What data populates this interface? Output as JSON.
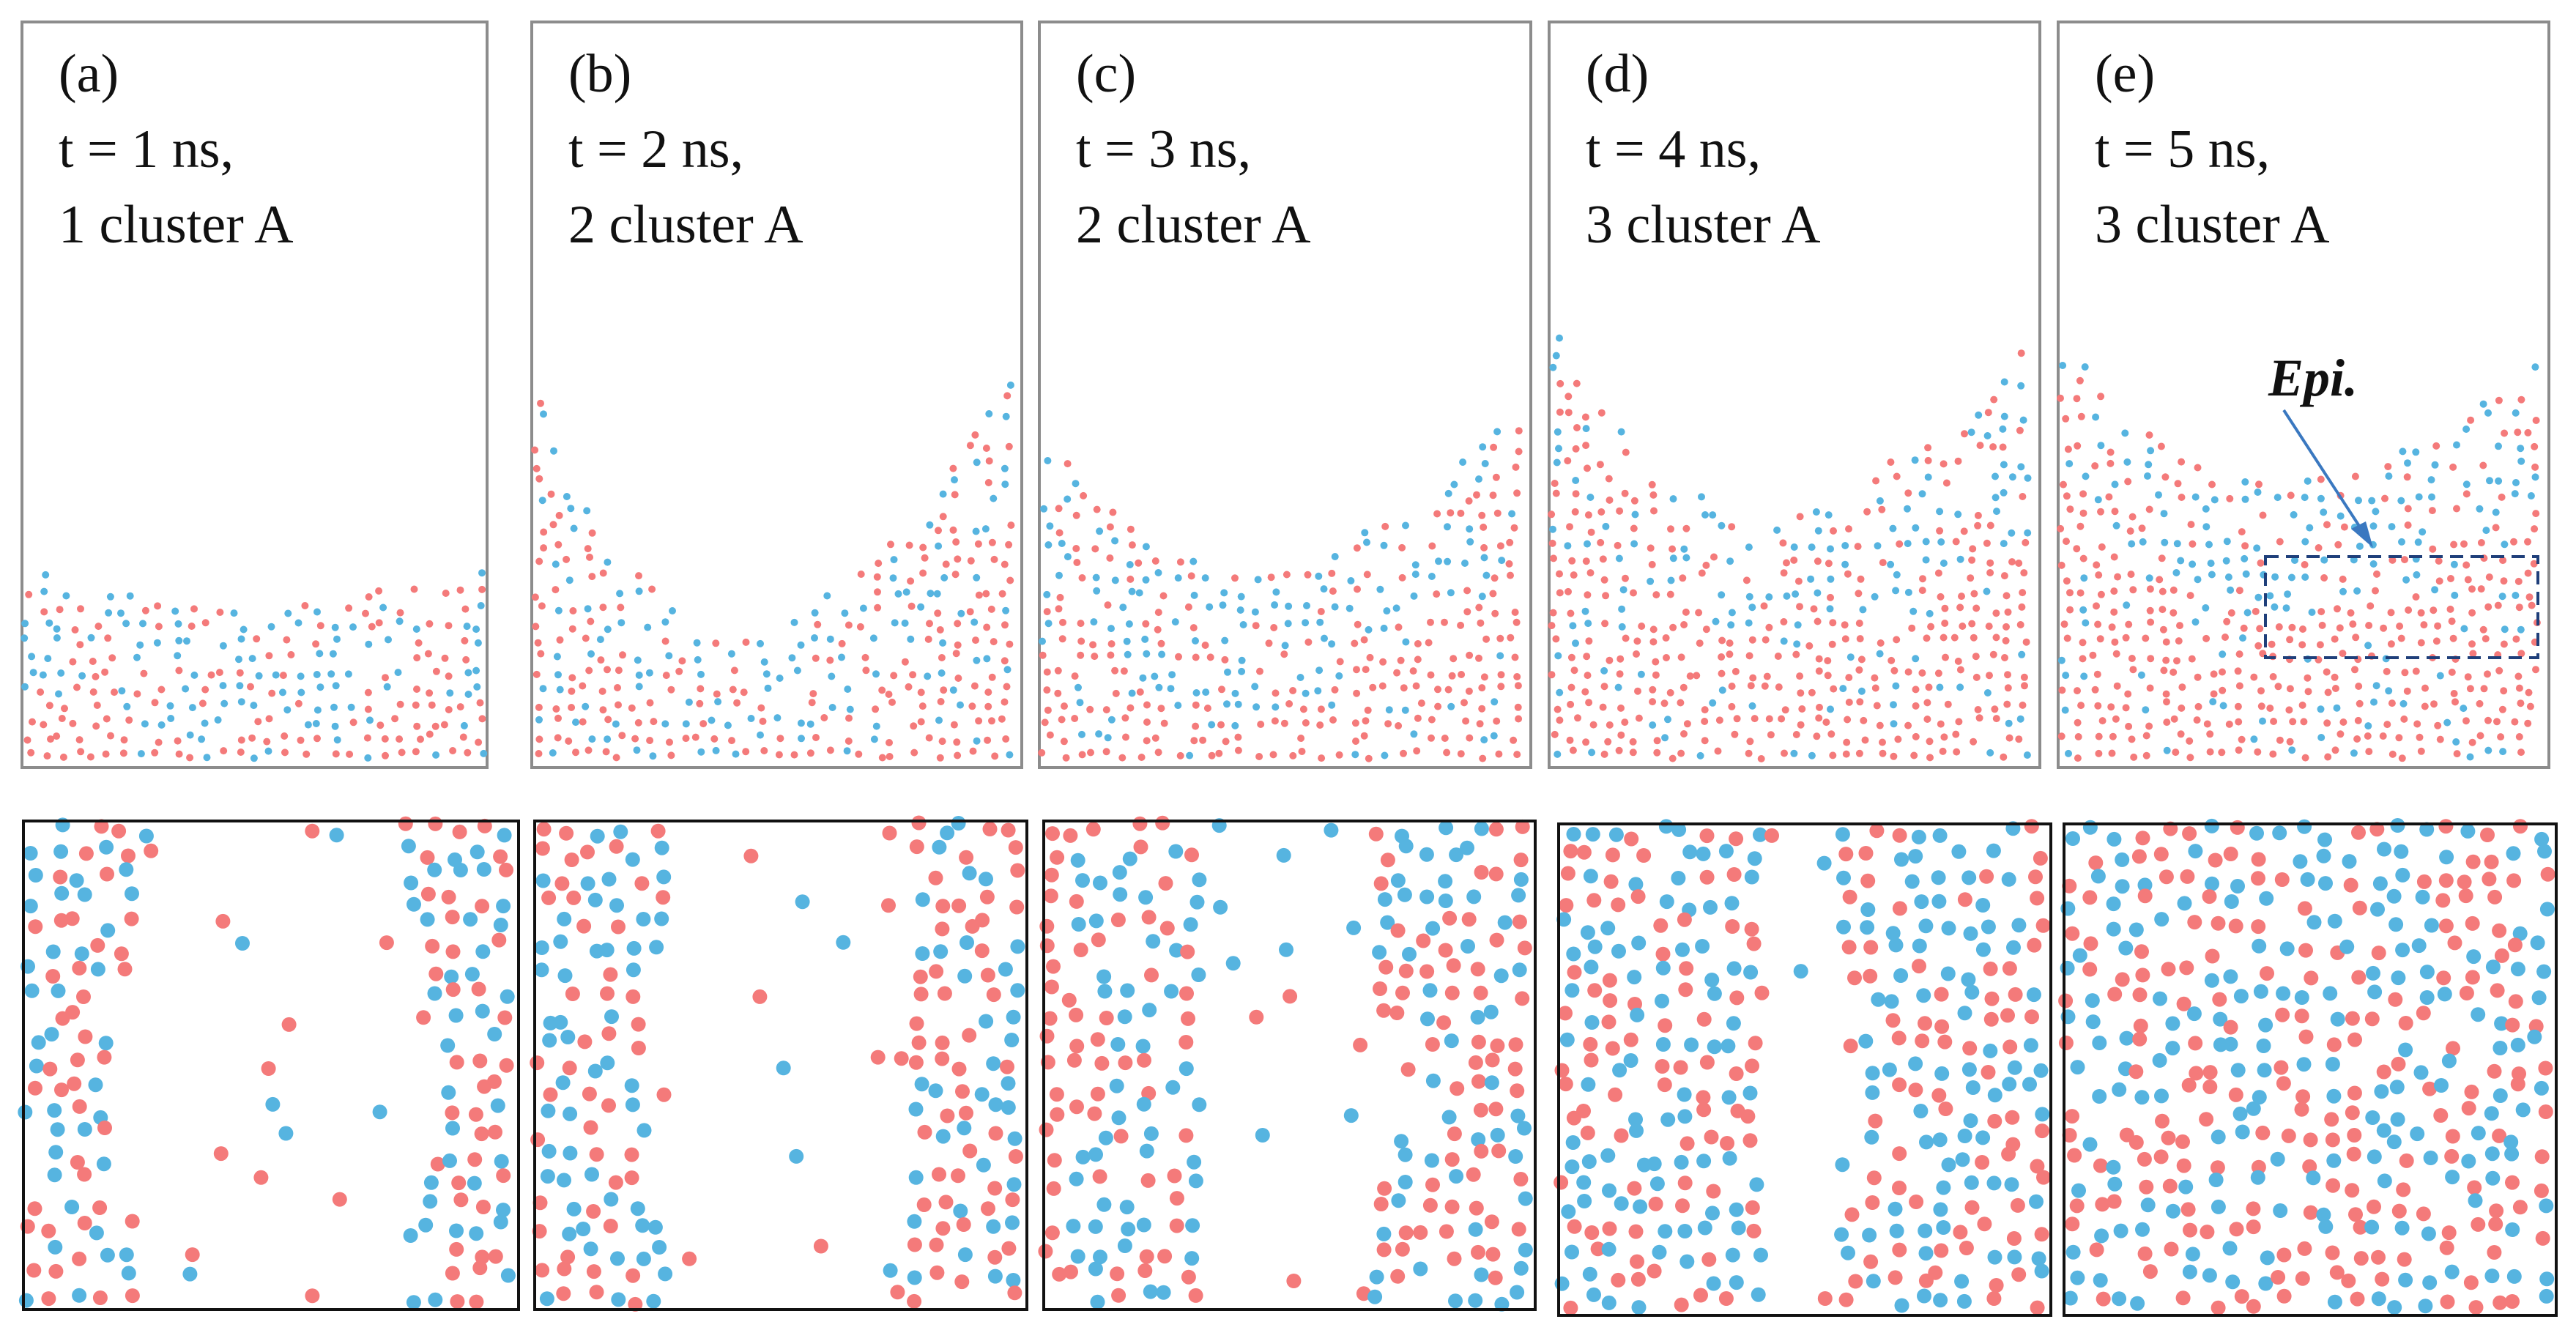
{
  "colors": {
    "atom_red": "#f47a7a",
    "atom_blue": "#56b4e0",
    "annotation": "#1f3f7a",
    "arrow": "#3a78c0",
    "top_frame": "#8c8c8c",
    "bottom_frame": "#111111"
  },
  "panels": [
    {
      "letter": "(a)",
      "time": "t = 1 ns,",
      "cluster": "1 cluster A",
      "surface_left": 0.72,
      "surface_right": 0.73,
      "trough": 0.78,
      "gap": 0.34
    },
    {
      "letter": "(b)",
      "time": "t = 2 ns,",
      "cluster": "2 cluster A",
      "surface_left": 0.48,
      "surface_right": 0.44,
      "trough": 0.82,
      "gap": 0.28
    },
    {
      "letter": "(c)",
      "time": "t = 3 ns,",
      "cluster": "2 cluster A",
      "surface_left": 0.55,
      "surface_right": 0.5,
      "trough": 0.74,
      "gap": 0.2
    },
    {
      "letter": "(d)",
      "time": "t = 4 ns,",
      "cluster": "3 cluster A",
      "surface_left": 0.4,
      "surface_right": 0.42,
      "trough": 0.66,
      "gap": 0.1
    },
    {
      "letter": "(e)",
      "time": "t = 5 ns,",
      "cluster": "3 cluster A",
      "surface_left": 0.42,
      "surface_right": 0.44,
      "trough": 0.62,
      "gap": 0.0
    }
  ],
  "annotation": {
    "label": "Epi.",
    "panel": 4
  }
}
